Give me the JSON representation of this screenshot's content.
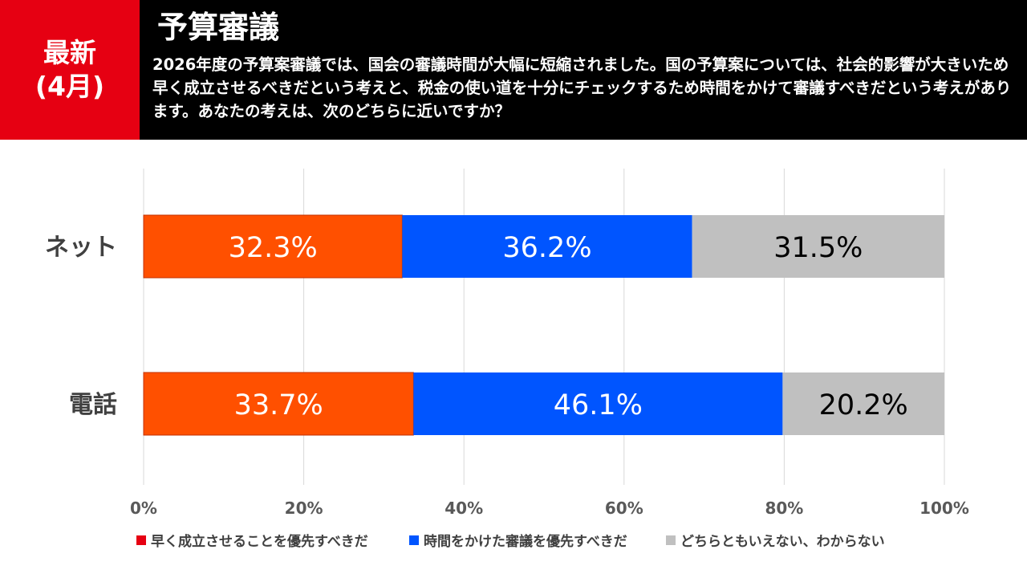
{
  "header": {
    "badge_line1": "最新",
    "badge_line2": "(4月)",
    "title": "予算審議",
    "question": "2026年度の予算案審議では、国会の審議時間が大幅に短縮されました。国の予算案については、社会的影響が大きいため早く成立させるべきだという考えと、税金の使い道を十分にチェックするため時間をかけて審議すべきだという考えがあります。あなたの考えは、次のどちらに近いですか？"
  },
  "colors": {
    "header_bg": "#000000",
    "badge_bg": "#e60012",
    "series": [
      "#ff5000",
      "#0055ff",
      "#c0c0c0"
    ],
    "label_text": [
      "#ffffff",
      "#ffffff",
      "#000000"
    ],
    "grid": "#d9d9d9",
    "axis_text": "#595959"
  },
  "chart_data": {
    "type": "bar",
    "orientation": "horizontal-stacked-100",
    "categories": [
      "ネット",
      "電話"
    ],
    "series": [
      {
        "name": "早く成立させることを優先すべきだ",
        "values": [
          32.3,
          33.7
        ],
        "labels": [
          "32.3%",
          "33.7%"
        ]
      },
      {
        "name": "時間をかけた審議を優先すべきだ",
        "values": [
          36.2,
          46.1
        ],
        "labels": [
          "36.2%",
          "46.1%"
        ]
      },
      {
        "name": "どちらともいえない、わからない",
        "values": [
          31.5,
          20.2
        ],
        "labels": [
          "31.5%",
          "20.2%"
        ]
      }
    ],
    "xlim": [
      0,
      100
    ],
    "x_ticks": [
      "0%",
      "20%",
      "40%",
      "60%",
      "80%",
      "100%"
    ],
    "grid": true,
    "legend_position": "bottom"
  }
}
